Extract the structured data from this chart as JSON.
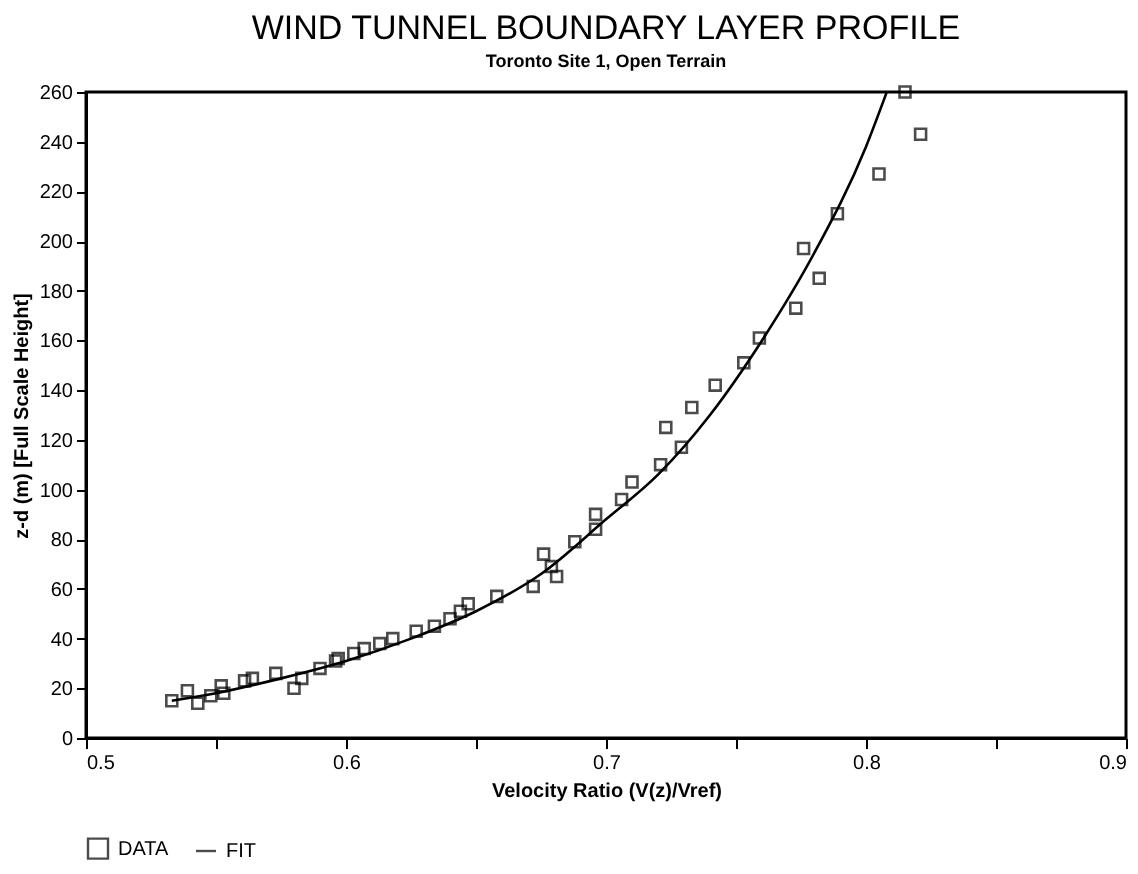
{
  "chart_data": {
    "type": "scatter",
    "title": "WIND TUNNEL BOUNDARY LAYER PROFILE",
    "subtitle": "Toronto Site 1, Open Terrain",
    "xlabel": "Velocity Ratio (V(z)/Vref)",
    "ylabel": "z-d (m) [Full Scale Height]",
    "xlim": [
      0.5,
      0.9
    ],
    "xticks": [
      0.5,
      {
        "value": 0.55,
        "label": null
      },
      0.6,
      {
        "value": 0.65,
        "label": null
      },
      0.7,
      {
        "value": 0.75,
        "label": null
      },
      0.8,
      {
        "value": 0.85,
        "label": null
      },
      0.9
    ],
    "ylim": [
      0,
      260
    ],
    "yticks": [
      0,
      20,
      40,
      60,
      80,
      100,
      120,
      140,
      160,
      180,
      200,
      220,
      240,
      260
    ],
    "grid": false,
    "legend": "bottom",
    "series": [
      {
        "name": "DATA",
        "marker": "square",
        "color": "#000000",
        "x": [
          0.533,
          0.539,
          0.543,
          0.548,
          0.552,
          0.553,
          0.561,
          0.564,
          0.573,
          0.58,
          0.583,
          0.59,
          0.596,
          0.597,
          0.603,
          0.607,
          0.613,
          0.618,
          0.627,
          0.634,
          0.64,
          0.644,
          0.647,
          0.658,
          0.672,
          0.676,
          0.679,
          0.681,
          0.688,
          0.696,
          0.696,
          0.706,
          0.71,
          0.721,
          0.729,
          0.723,
          0.733,
          0.742,
          0.753,
          0.759,
          0.773,
          0.782,
          0.776,
          0.789,
          0.805,
          0.821,
          0.815
        ],
        "values": [
          15,
          19,
          14,
          17,
          21,
          18,
          23,
          24,
          26,
          20,
          24,
          28,
          31,
          32,
          34,
          36,
          38,
          40,
          43,
          45,
          48,
          51,
          54,
          57,
          61,
          74,
          69,
          65,
          79,
          84,
          90,
          96,
          103,
          110,
          117,
          125,
          133,
          142,
          151,
          161,
          173,
          185,
          197,
          211,
          227,
          243,
          260
        ]
      },
      {
        "name": "FIT",
        "type": "line",
        "marker": "none",
        "line_style": "solid",
        "color": "#000000",
        "x": [
          0.533,
          0.55,
          0.575,
          0.6,
          0.625,
          0.65,
          0.675,
          0.7,
          0.72,
          0.74,
          0.76,
          0.78,
          0.8,
          0.808
        ],
        "values": [
          15,
          18,
          24,
          31,
          40,
          51,
          66,
          88,
          106,
          130,
          160,
          195,
          238,
          260
        ]
      }
    ]
  }
}
